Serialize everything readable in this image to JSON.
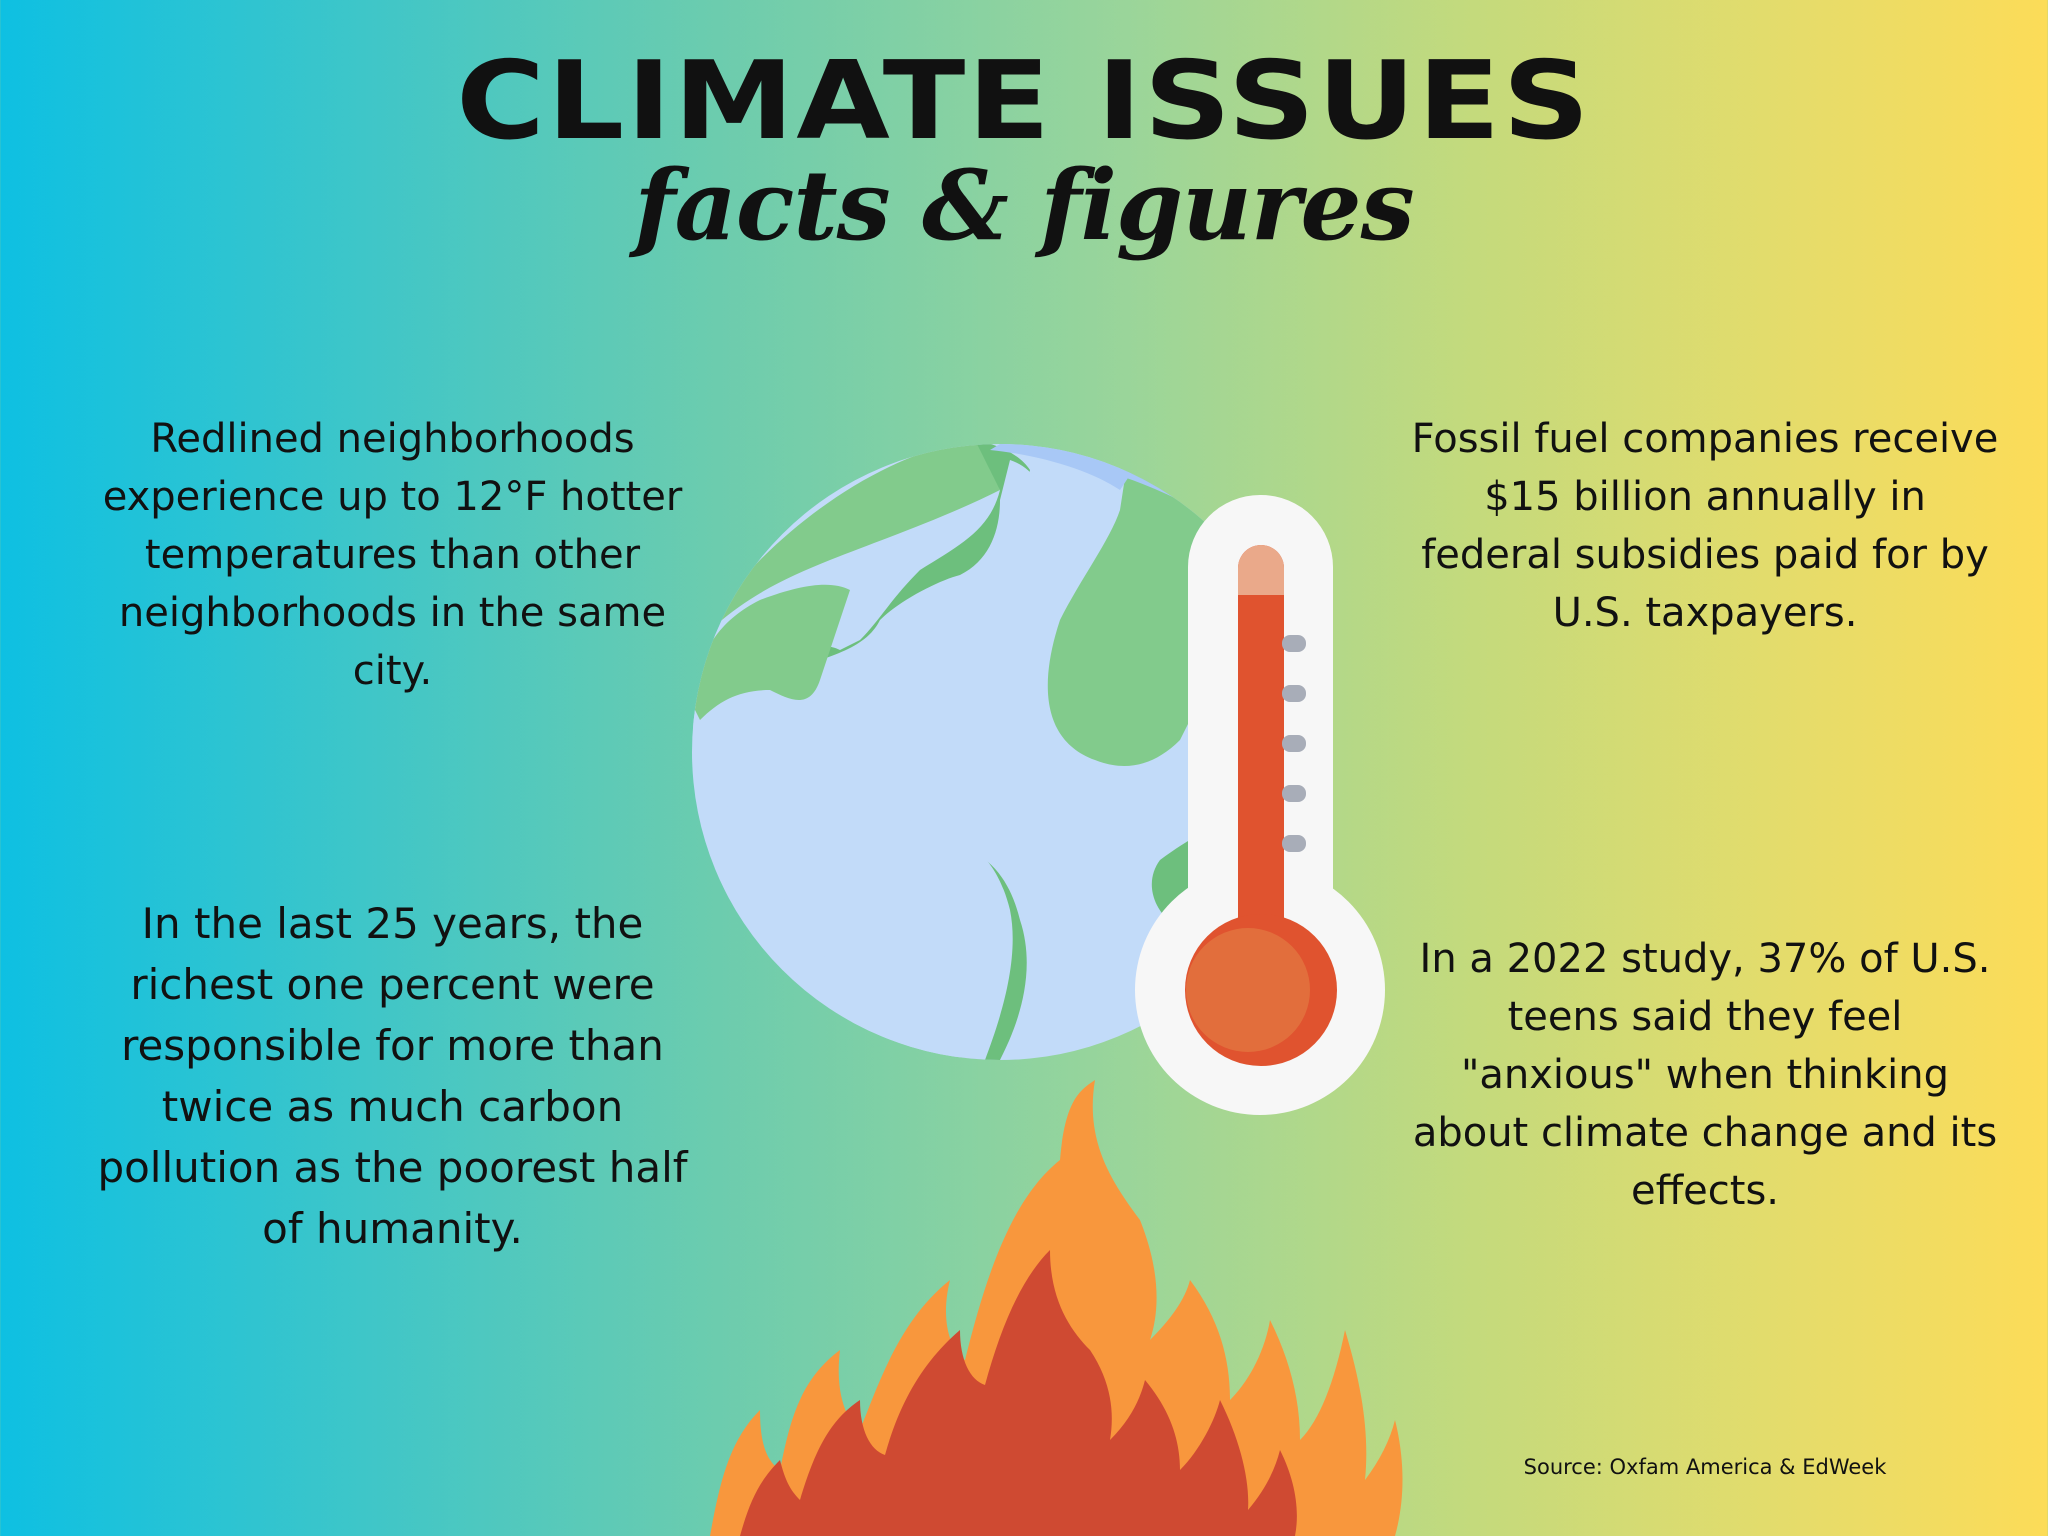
{
  "header": {
    "title": "CLIMATE ISSUES",
    "subtitle": "facts & figures"
  },
  "facts": {
    "top_left": "Redlined neighborhoods experience up to 12°F hotter temperatures than other neighborhoods in the same city.",
    "bottom_left": "In the last 25 years, the richest one percent were responsible for more than twice as much carbon pollution as the poorest half of humanity.",
    "top_right": "Fossil fuel companies receive $15 billion annually in federal subsidies paid for by U.S. taxpayers.",
    "bottom_right": "In a 2022 study, 37% of U.S. teens said they feel \"anxious\" when thinking about climate change and its effects."
  },
  "source": "Source: Oxfam America & EdWeek",
  "illustrations": {
    "globe": "earth-globe-icon",
    "thermometer": "thermometer-icon",
    "flames": "fire-flames-icon"
  },
  "colors": {
    "gradient_left": "#0ec0e2",
    "gradient_right": "#fcdc58",
    "ocean": "#c2dbf9",
    "land": "#82cb8c",
    "thermo_red": "#e0532f",
    "flame_orange": "#f8973d",
    "flame_red": "#cf4a32"
  }
}
